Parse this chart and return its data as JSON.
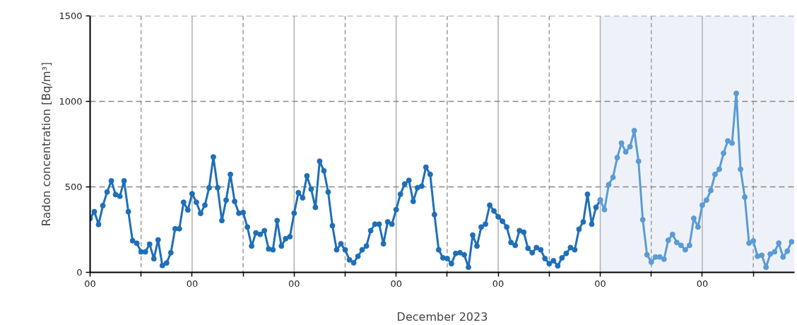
{
  "chart_data": {
    "type": "line",
    "xlabel": "December 2023",
    "ylabel": "Radon concentration [Bq/m³]",
    "categories": [
      "00",
      null,
      null,
      null,
      null,
      null,
      null,
      null,
      null,
      null,
      null,
      null,
      null,
      null,
      null,
      null,
      null,
      null,
      null,
      null,
      null,
      null,
      null,
      null,
      "00",
      null,
      null,
      null,
      null,
      null,
      null,
      null,
      null,
      null,
      null,
      null,
      null,
      null,
      null,
      null,
      null,
      null,
      null,
      null,
      null,
      null,
      null,
      null,
      "00",
      null,
      null,
      null,
      null,
      null,
      null,
      null,
      null,
      null,
      null,
      null,
      null,
      null,
      null,
      null,
      null,
      null,
      null,
      null,
      null,
      null,
      null,
      null,
      "00",
      null,
      null,
      null,
      null,
      null,
      null,
      null,
      null,
      null,
      null,
      null,
      null,
      null,
      null,
      null,
      null,
      null,
      null,
      null,
      null,
      null,
      null,
      null,
      "00",
      null,
      null,
      null,
      null,
      null,
      null,
      null,
      null,
      null,
      null,
      null,
      null,
      null,
      null,
      null,
      null,
      null,
      null,
      null,
      null,
      null,
      null,
      null,
      "00",
      null,
      null,
      null,
      null,
      null,
      null,
      null,
      null,
      null,
      null,
      null,
      null,
      null,
      null,
      null,
      null,
      null,
      null,
      null,
      null,
      null,
      null,
      null,
      "00",
      null,
      null,
      null,
      null,
      null,
      null,
      null,
      null,
      null,
      null,
      null,
      null,
      null,
      null,
      null,
      null,
      null,
      null,
      null,
      null,
      null
    ],
    "ylim": [
      0,
      1500
    ],
    "yticks": [
      0,
      500,
      1000,
      1500
    ],
    "grid": true,
    "marker": "circle",
    "line_style": "solid",
    "series": [
      {
        "color": "#1f6fb8",
        "values": [
          315,
          355,
          280,
          390,
          470,
          535,
          455,
          445,
          535,
          355,
          185,
          170,
          120,
          120,
          165,
          80,
          190,
          40,
          55,
          115,
          255,
          255,
          410,
          365,
          460,
          410,
          345,
          393,
          495,
          675,
          495,
          303,
          423,
          573,
          415,
          346,
          350,
          265,
          154,
          231,
          222,
          244,
          137,
          132,
          303,
          154,
          197,
          209,
          346,
          466,
          436,
          564,
          487,
          380,
          650,
          594,
          470,
          273,
          132,
          167,
          132,
          73,
          56,
          94,
          132,
          154,
          244,
          282,
          282,
          167,
          295,
          282,
          367,
          457,
          517,
          538,
          415,
          495,
          504,
          615,
          573,
          338,
          132,
          85,
          81,
          51,
          111,
          115,
          103,
          30,
          218,
          154,
          265,
          282,
          393,
          359,
          325,
          299,
          265,
          175,
          158,
          244,
          235,
          141,
          115,
          145,
          132,
          81,
          51,
          68,
          38,
          85,
          111,
          145,
          132,
          252,
          295,
          457,
          282,
          380,
          423,
          null,
          null,
          null,
          null,
          null,
          null,
          null,
          null,
          null,
          null,
          null,
          null,
          null,
          null,
          null,
          null,
          null,
          null,
          null,
          null,
          null,
          null,
          null,
          null,
          null,
          null,
          null,
          null,
          null,
          null,
          null,
          null,
          null,
          null,
          null,
          null,
          null,
          null,
          null,
          null,
          null,
          null,
          null,
          null,
          null
        ]
      },
      {
        "color": "#5b9bd5",
        "values": [
          null,
          null,
          null,
          null,
          null,
          null,
          null,
          null,
          null,
          null,
          null,
          null,
          null,
          null,
          null,
          null,
          null,
          null,
          null,
          null,
          null,
          null,
          null,
          null,
          null,
          null,
          null,
          null,
          null,
          null,
          null,
          null,
          null,
          null,
          null,
          null,
          null,
          null,
          null,
          null,
          null,
          null,
          null,
          null,
          null,
          null,
          null,
          null,
          null,
          null,
          null,
          null,
          null,
          null,
          null,
          null,
          null,
          null,
          null,
          null,
          null,
          null,
          null,
          null,
          null,
          null,
          null,
          null,
          null,
          null,
          null,
          null,
          null,
          null,
          null,
          null,
          null,
          null,
          null,
          null,
          null,
          null,
          null,
          null,
          null,
          null,
          null,
          null,
          null,
          null,
          null,
          null,
          null,
          null,
          null,
          null,
          null,
          null,
          null,
          null,
          null,
          null,
          null,
          null,
          null,
          null,
          null,
          null,
          null,
          null,
          null,
          null,
          null,
          null,
          null,
          null,
          null,
          null,
          null,
          null,
          423,
          367,
          513,
          556,
          671,
          756,
          705,
          735,
          829,
          650,
          308,
          103,
          60,
          90,
          90,
          77,
          188,
          222,
          175,
          158,
          132,
          158,
          316,
          265,
          393,
          423,
          479,
          573,
          603,
          697,
          769,
          756,
          1047,
          603,
          440,
          171,
          184,
          94,
          100,
          30,
          107,
          120,
          171,
          90,
          124,
          179
        ]
      }
    ]
  }
}
